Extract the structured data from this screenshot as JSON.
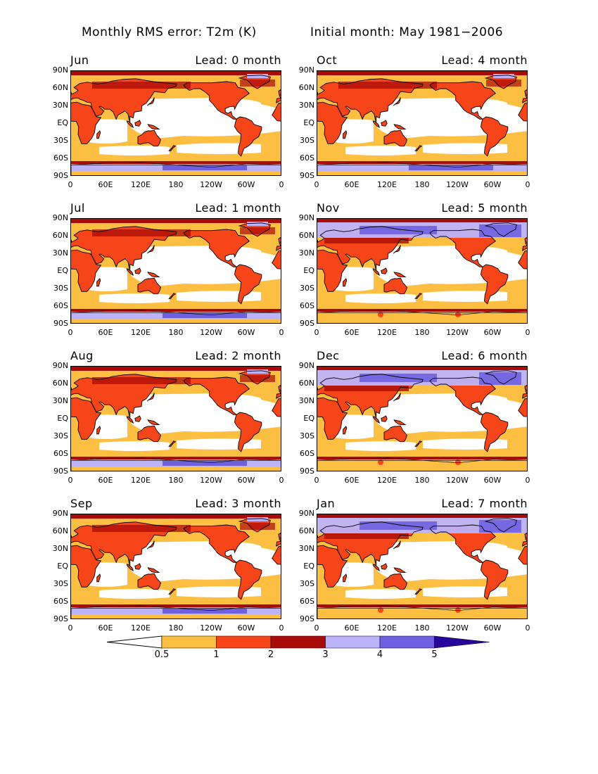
{
  "figure": {
    "title_left": "Monthly RMS error: T2m (K)",
    "title_right": "Initial month: May 1981−2006"
  },
  "panels": [
    {
      "month": "Jun",
      "lead": "Lead: 0 month"
    },
    {
      "month": "Oct",
      "lead": "Lead: 4 month"
    },
    {
      "month": "Jul",
      "lead": "Lead: 1 month"
    },
    {
      "month": "Nov",
      "lead": "Lead: 5 month"
    },
    {
      "month": "Aug",
      "lead": "Lead: 2 month"
    },
    {
      "month": "Dec",
      "lead": "Lead: 6 month"
    },
    {
      "month": "Sep",
      "lead": "Lead: 3 month"
    },
    {
      "month": "Jan",
      "lead": "Lead: 7 month"
    }
  ],
  "axes": {
    "lat_ticks": [
      "90N",
      "60N",
      "30N",
      "EQ",
      "30S",
      "60S",
      "90S"
    ],
    "lon_ticks": [
      "0",
      "60E",
      "120E",
      "180",
      "120W",
      "60W",
      "0"
    ]
  },
  "colorbar": {
    "labels": [
      "0.5",
      "1",
      "2",
      "3",
      "4",
      "5"
    ],
    "colors": [
      "#ffffff",
      "#fdbf42",
      "#f7451a",
      "#a80b08",
      "#bdb3fb",
      "#6e60e0",
      "#28089c"
    ]
  },
  "palette": {
    "white": "#ffffff",
    "yellow": "#fdbf42",
    "orange": "#f7451a",
    "darkred": "#a80b08",
    "lilac": "#bdb3fb",
    "violet": "#6e60e0",
    "navy": "#28089c",
    "coast": "#000000"
  }
}
